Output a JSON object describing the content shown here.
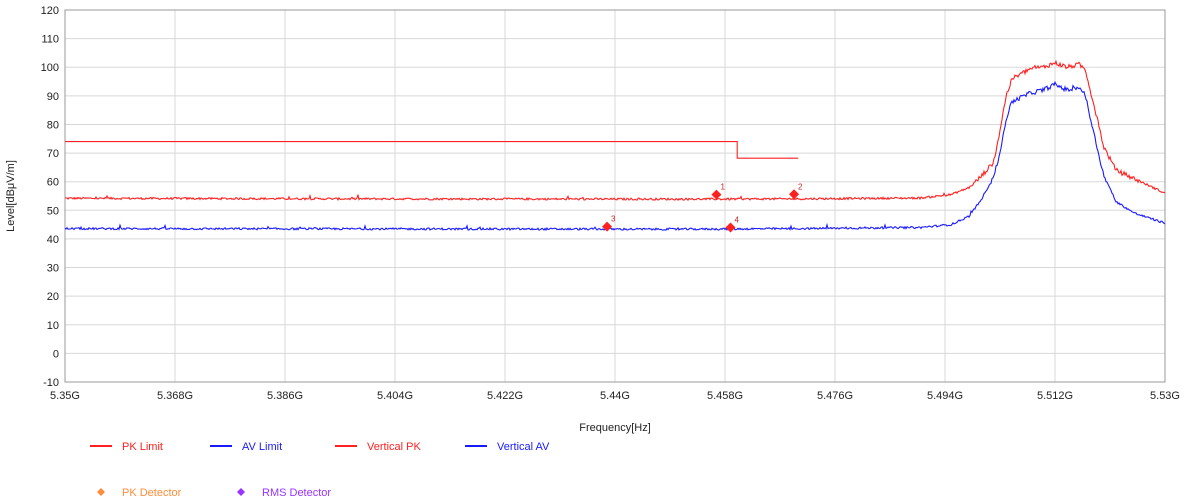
{
  "chart_data": {
    "type": "line",
    "xlabel": "Frequency[Hz]",
    "ylabel": "Level[dBμV/m]",
    "xlim": [
      5.35,
      5.53
    ],
    "ylim": [
      -10,
      120
    ],
    "x_ticks": [
      5.35,
      5.368,
      5.386,
      5.404,
      5.422,
      5.44,
      5.458,
      5.476,
      5.494,
      5.512,
      5.53
    ],
    "x_tick_labels": [
      "5.35G",
      "5.368G",
      "5.386G",
      "5.404G",
      "5.422G",
      "5.44G",
      "5.458G",
      "5.476G",
      "5.494G",
      "5.512G",
      "5.53G"
    ],
    "y_ticks": [
      -10,
      0,
      10,
      20,
      30,
      40,
      50,
      60,
      70,
      80,
      90,
      100,
      110,
      120
    ],
    "y_tick_labels": [
      "-10",
      "0",
      "10",
      "20",
      "30",
      "40",
      "50",
      "60",
      "70",
      "80",
      "90",
      "100",
      "110",
      "120"
    ],
    "grid": true,
    "legend_position": "bottom-left",
    "series": [
      {
        "name": "PK Limit",
        "color": "#ff2020",
        "style": "step",
        "x": [
          5.35,
          5.46,
          5.46,
          5.47
        ],
        "y": [
          74,
          74,
          68.2,
          68.2
        ]
      },
      {
        "name": "AV Limit",
        "color": "#1a1aff",
        "style": "step",
        "x": [],
        "y": []
      },
      {
        "name": "Vertical PK",
        "color": "#ff2020",
        "style": "noisy",
        "x": [
          5.35,
          5.4,
          5.45,
          5.47,
          5.49,
          5.495,
          5.498,
          5.5,
          5.502,
          5.503,
          5.504,
          5.505,
          5.508,
          5.51,
          5.512,
          5.514,
          5.516,
          5.517,
          5.518,
          5.52,
          5.522,
          5.525,
          5.53
        ],
        "y": [
          54.2,
          54.0,
          53.9,
          54.0,
          54.3,
          55.5,
          58,
          62,
          67,
          78,
          90,
          96,
          99.5,
          100,
          101.5,
          100,
          101,
          99,
          90,
          72,
          64,
          61,
          56
        ]
      },
      {
        "name": "Vertical AV",
        "color": "#1a1aff",
        "style": "noisy",
        "x": [
          5.35,
          5.4,
          5.45,
          5.47,
          5.49,
          5.495,
          5.498,
          5.5,
          5.502,
          5.503,
          5.504,
          5.505,
          5.508,
          5.51,
          5.512,
          5.514,
          5.516,
          5.517,
          5.518,
          5.52,
          5.522,
          5.525,
          5.53
        ],
        "y": [
          43.6,
          43.5,
          43.4,
          43.6,
          44,
          45,
          48,
          54,
          62,
          70,
          82,
          88,
          91,
          92,
          94,
          92,
          93,
          90,
          80,
          62,
          53,
          49,
          45.5
        ]
      }
    ],
    "markers": [
      {
        "label": "1",
        "x": 5.4566,
        "y": 55.5,
        "color": "#ff2020"
      },
      {
        "label": "2",
        "x": 5.4693,
        "y": 55.6,
        "color": "#ff2020"
      },
      {
        "label": "3",
        "x": 5.4387,
        "y": 44.3,
        "color": "#ff2020"
      },
      {
        "label": "4",
        "x": 5.4589,
        "y": 44.0,
        "color": "#ff2020"
      }
    ],
    "legend_entries": [
      {
        "label": "PK Limit",
        "color": "#ff2020",
        "symbol": "line"
      },
      {
        "label": "AV Limit",
        "color": "#1a1aff",
        "symbol": "line"
      },
      {
        "label": "Vertical PK",
        "color": "#ff2020",
        "symbol": "line"
      },
      {
        "label": "Vertical AV",
        "color": "#1a1aff",
        "symbol": "line"
      },
      {
        "label": "PK Detector",
        "color": "#ff8c3a",
        "symbol": "diamond"
      },
      {
        "label": "RMS Detector",
        "color": "#9933ff",
        "symbol": "diamond"
      }
    ]
  }
}
